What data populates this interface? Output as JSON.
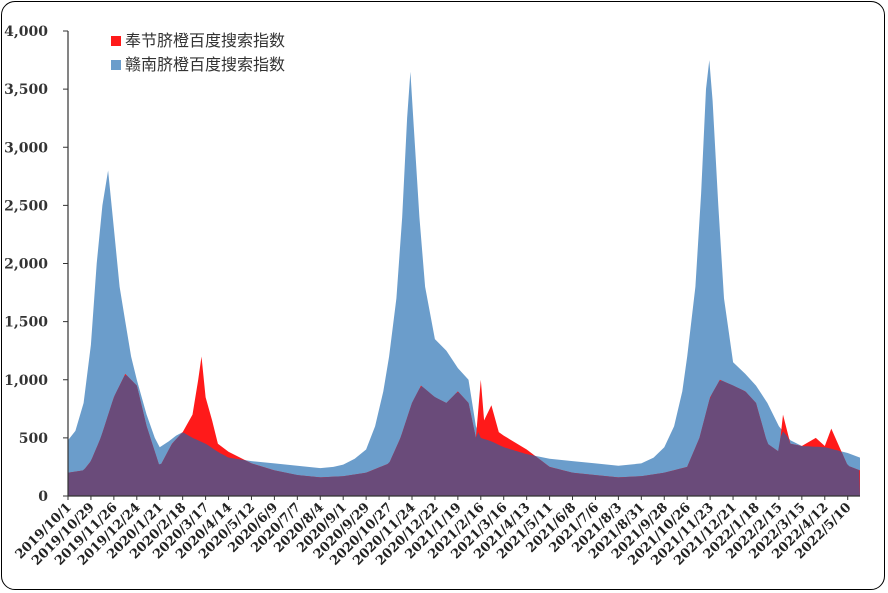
{
  "chart_data": {
    "type": "area",
    "ylim": [
      0,
      4000
    ],
    "y_ticks": [
      "0",
      "500",
      "1,000",
      "1,500",
      "2,000",
      "2,500",
      "3,000",
      "3,500",
      "4,000"
    ],
    "y_tick_values": [
      0,
      500,
      1000,
      1500,
      2000,
      2500,
      3000,
      3500,
      4000
    ],
    "x_start": "2019-10-01",
    "x_end": "2022-05-25",
    "x_ticks": [
      "2019/10/1",
      "2019/10/29",
      "2019/11/26",
      "2019/12/24",
      "2020/1/21",
      "2020/2/18",
      "2020/3/17",
      "2020/4/14",
      "2020/5/12",
      "2020/6/9",
      "2020/7/7",
      "2020/8/4",
      "2020/9/1",
      "2020/9/29",
      "2020/10/27",
      "2020/11/24",
      "2020/12/22",
      "2021/1/19",
      "2021/2/16",
      "2021/3/16",
      "2021/4/13",
      "2021/5/11",
      "2021/6/8",
      "2021/7/6",
      "2021/8/3",
      "2021/8/31",
      "2021/9/28",
      "2021/10/26",
      "2021/11/23",
      "2021/12/21",
      "2022/1/18",
      "2022/2/15",
      "2022/3/15",
      "2022/4/12",
      "2022/5/10"
    ],
    "legend_position": "top-left",
    "grid": false,
    "series": [
      {
        "name": "赣南脐橙百度搜索指数",
        "color": "#6b9dcb",
        "points": [
          [
            "2019-10-01",
            480
          ],
          [
            "2019-10-10",
            560
          ],
          [
            "2019-10-20",
            800
          ],
          [
            "2019-10-29",
            1300
          ],
          [
            "2019-11-05",
            2000
          ],
          [
            "2019-11-12",
            2500
          ],
          [
            "2019-11-19",
            2800
          ],
          [
            "2019-11-26",
            2300
          ],
          [
            "2019-12-03",
            1800
          ],
          [
            "2019-12-10",
            1500
          ],
          [
            "2019-12-17",
            1200
          ],
          [
            "2019-12-24",
            1000
          ],
          [
            "2020-01-05",
            700
          ],
          [
            "2020-01-15",
            500
          ],
          [
            "2020-01-21",
            420
          ],
          [
            "2020-02-01",
            470
          ],
          [
            "2020-02-10",
            520
          ],
          [
            "2020-02-18",
            550
          ],
          [
            "2020-03-01",
            500
          ],
          [
            "2020-03-17",
            450
          ],
          [
            "2020-04-01",
            380
          ],
          [
            "2020-04-14",
            330
          ],
          [
            "2020-05-12",
            300
          ],
          [
            "2020-06-09",
            280
          ],
          [
            "2020-07-07",
            260
          ],
          [
            "2020-08-04",
            240
          ],
          [
            "2020-08-20",
            250
          ],
          [
            "2020-09-01",
            270
          ],
          [
            "2020-09-15",
            320
          ],
          [
            "2020-09-29",
            400
          ],
          [
            "2020-10-10",
            600
          ],
          [
            "2020-10-20",
            900
          ],
          [
            "2020-10-27",
            1200
          ],
          [
            "2020-11-05",
            1700
          ],
          [
            "2020-11-12",
            2400
          ],
          [
            "2020-11-18",
            3250
          ],
          [
            "2020-11-22",
            3650
          ],
          [
            "2020-11-26",
            3200
          ],
          [
            "2020-12-03",
            2400
          ],
          [
            "2020-12-10",
            1800
          ],
          [
            "2020-12-22",
            1350
          ],
          [
            "2021-01-05",
            1250
          ],
          [
            "2021-01-19",
            1100
          ],
          [
            "2021-02-01",
            1000
          ],
          [
            "2021-02-10",
            600
          ],
          [
            "2021-02-16",
            500
          ],
          [
            "2021-03-01",
            470
          ],
          [
            "2021-03-16",
            420
          ],
          [
            "2021-04-13",
            360
          ],
          [
            "2021-05-11",
            320
          ],
          [
            "2021-06-08",
            300
          ],
          [
            "2021-07-06",
            280
          ],
          [
            "2021-08-03",
            260
          ],
          [
            "2021-08-31",
            280
          ],
          [
            "2021-09-15",
            330
          ],
          [
            "2021-09-28",
            420
          ],
          [
            "2021-10-10",
            600
          ],
          [
            "2021-10-20",
            900
          ],
          [
            "2021-10-26",
            1200
          ],
          [
            "2021-11-05",
            1800
          ],
          [
            "2021-11-12",
            2600
          ],
          [
            "2021-11-18",
            3500
          ],
          [
            "2021-11-22",
            3750
          ],
          [
            "2021-11-26",
            3400
          ],
          [
            "2021-12-03",
            2500
          ],
          [
            "2021-12-10",
            1700
          ],
          [
            "2021-12-21",
            1150
          ],
          [
            "2022-01-05",
            1050
          ],
          [
            "2022-01-18",
            950
          ],
          [
            "2022-02-01",
            800
          ],
          [
            "2022-02-15",
            600
          ],
          [
            "2022-03-01",
            480
          ],
          [
            "2022-03-15",
            430
          ],
          [
            "2022-04-12",
            420
          ],
          [
            "2022-05-10",
            370
          ],
          [
            "2022-05-25",
            330
          ]
        ]
      },
      {
        "name": "奉节脐橙百度搜索指数",
        "color": "#ff1a1a",
        "points": [
          [
            "2019-10-01",
            200
          ],
          [
            "2019-10-20",
            220
          ],
          [
            "2019-10-29",
            300
          ],
          [
            "2019-11-10",
            500
          ],
          [
            "2019-11-26",
            850
          ],
          [
            "2019-12-10",
            1050
          ],
          [
            "2019-12-24",
            950
          ],
          [
            "2020-01-05",
            600
          ],
          [
            "2020-01-21",
            250
          ],
          [
            "2020-02-05",
            450
          ],
          [
            "2020-02-18",
            550
          ],
          [
            "2020-03-01",
            700
          ],
          [
            "2020-03-08",
            1000
          ],
          [
            "2020-03-12",
            1200
          ],
          [
            "2020-03-17",
            850
          ],
          [
            "2020-03-25",
            650
          ],
          [
            "2020-04-01",
            450
          ],
          [
            "2020-04-14",
            380
          ],
          [
            "2020-05-12",
            280
          ],
          [
            "2020-06-09",
            220
          ],
          [
            "2020-07-07",
            180
          ],
          [
            "2020-08-04",
            160
          ],
          [
            "2020-09-01",
            170
          ],
          [
            "2020-09-29",
            200
          ],
          [
            "2020-10-27",
            280
          ],
          [
            "2020-11-10",
            500
          ],
          [
            "2020-11-24",
            800
          ],
          [
            "2020-12-05",
            950
          ],
          [
            "2020-12-22",
            850
          ],
          [
            "2021-01-05",
            800
          ],
          [
            "2021-01-19",
            900
          ],
          [
            "2021-02-01",
            800
          ],
          [
            "2021-02-10",
            500
          ],
          [
            "2021-02-16",
            1000
          ],
          [
            "2021-02-20",
            650
          ],
          [
            "2021-03-01",
            780
          ],
          [
            "2021-03-10",
            550
          ],
          [
            "2021-03-16",
            520
          ],
          [
            "2021-04-13",
            400
          ],
          [
            "2021-05-11",
            250
          ],
          [
            "2021-06-08",
            200
          ],
          [
            "2021-07-06",
            180
          ],
          [
            "2021-08-03",
            160
          ],
          [
            "2021-08-31",
            170
          ],
          [
            "2021-09-28",
            200
          ],
          [
            "2021-10-26",
            250
          ],
          [
            "2021-11-10",
            500
          ],
          [
            "2021-11-23",
            850
          ],
          [
            "2021-12-05",
            1000
          ],
          [
            "2021-12-21",
            950
          ],
          [
            "2022-01-05",
            900
          ],
          [
            "2022-01-18",
            800
          ],
          [
            "2022-02-01",
            450
          ],
          [
            "2022-02-15",
            380
          ],
          [
            "2022-02-20",
            700
          ],
          [
            "2022-03-01",
            450
          ],
          [
            "2022-03-15",
            430
          ],
          [
            "2022-04-01",
            500
          ],
          [
            "2022-04-12",
            430
          ],
          [
            "2022-04-20",
            580
          ],
          [
            "2022-05-10",
            260
          ],
          [
            "2022-05-25",
            220
          ]
        ]
      }
    ]
  }
}
